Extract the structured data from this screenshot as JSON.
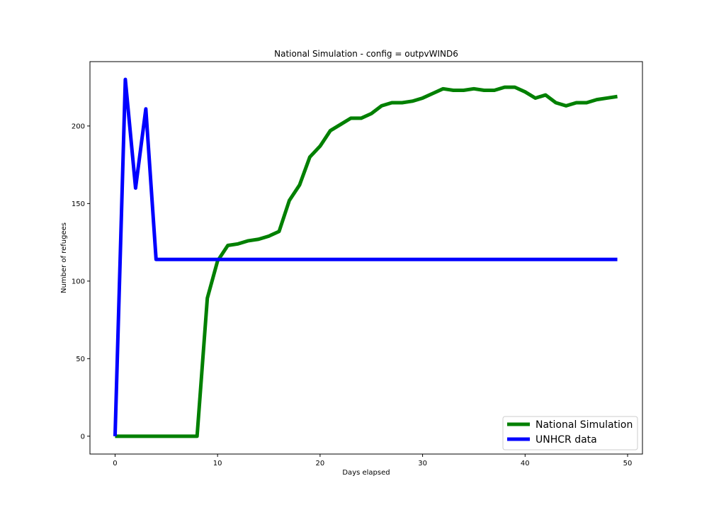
{
  "chart_data": {
    "type": "line",
    "title": "National Simulation - config = outpvWIND6",
    "xlabel": "Days elapsed",
    "ylabel": "Number of refugees",
    "xlim": [
      -2.45,
      51.45
    ],
    "ylim": [
      -11.5,
      241.5
    ],
    "xticks": [
      0,
      10,
      20,
      30,
      40,
      50
    ],
    "yticks": [
      0,
      50,
      100,
      150,
      200
    ],
    "grid": false,
    "legend_position": "lower-right",
    "x": [
      0,
      1,
      2,
      3,
      4,
      5,
      6,
      7,
      8,
      9,
      10,
      11,
      12,
      13,
      14,
      15,
      16,
      17,
      18,
      19,
      20,
      21,
      22,
      23,
      24,
      25,
      26,
      27,
      28,
      29,
      30,
      31,
      32,
      33,
      34,
      35,
      36,
      37,
      38,
      39,
      40,
      41,
      42,
      43,
      44,
      45,
      46,
      47,
      48,
      49
    ],
    "series": [
      {
        "name": "National Simulation",
        "color": "#008000",
        "values": [
          0,
          0,
          0,
          0,
          0,
          0,
          0,
          0,
          0,
          89,
          113,
          123,
          124,
          126,
          127,
          129,
          132,
          152,
          162,
          180,
          187,
          197,
          201,
          205,
          205,
          208,
          213,
          215,
          215,
          216,
          218,
          221,
          224,
          223,
          223,
          224,
          223,
          223,
          225,
          225,
          222,
          218,
          220,
          215,
          213,
          215,
          215,
          217,
          218,
          219
        ]
      },
      {
        "name": "UNHCR data",
        "color": "#0000ff",
        "values": [
          0,
          230,
          160,
          211,
          114,
          114,
          114,
          114,
          114,
          114,
          114,
          114,
          114,
          114,
          114,
          114,
          114,
          114,
          114,
          114,
          114,
          114,
          114,
          114,
          114,
          114,
          114,
          114,
          114,
          114,
          114,
          114,
          114,
          114,
          114,
          114,
          114,
          114,
          114,
          114,
          114,
          114,
          114,
          114,
          114,
          114,
          114,
          114,
          114,
          114
        ]
      }
    ]
  }
}
